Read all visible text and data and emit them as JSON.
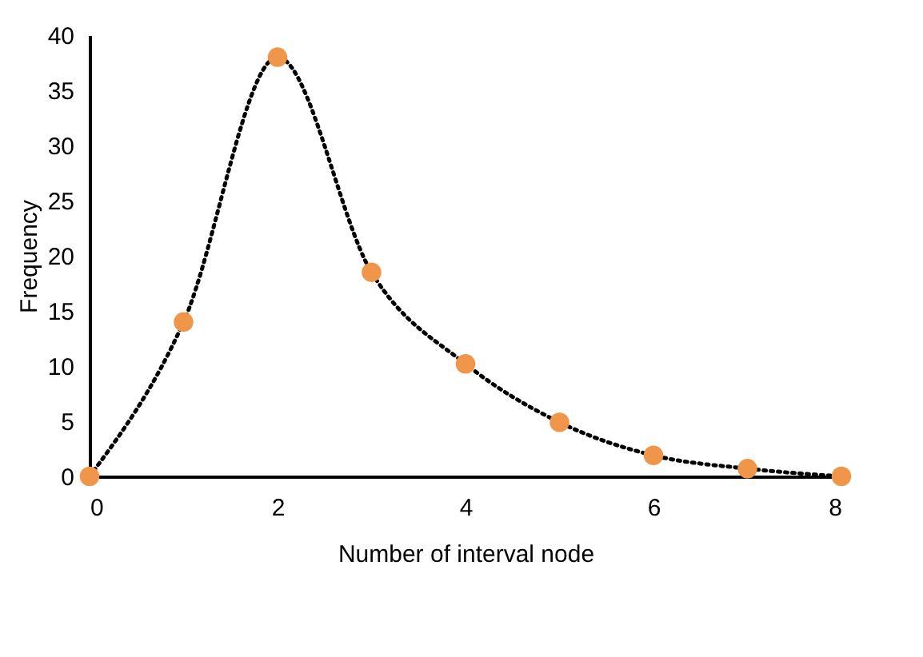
{
  "chart_data": {
    "type": "line",
    "xlabel": "Number of interval node",
    "ylabel": "Frequency",
    "x": [
      0,
      1,
      2,
      3,
      4,
      5,
      6,
      7,
      8
    ],
    "series": [
      {
        "color": "#000000",
        "marker": "none",
        "line_style": "dotted",
        "values": [
          0,
          14,
          38,
          18.5,
          10.2,
          4.9,
          1.9,
          0.7,
          0
        ]
      },
      {
        "type": "scatter",
        "color": "#f0964b",
        "marker": "circle",
        "values": [
          0,
          14,
          38,
          18.5,
          10.2,
          4.9,
          1.9,
          0.7,
          0
        ]
      }
    ],
    "xlim": [
      0,
      8
    ],
    "xticks": [
      0,
      2,
      4,
      6,
      8
    ],
    "ylim": [
      0,
      40
    ],
    "yticks": [
      0,
      5,
      10,
      15,
      20,
      25,
      30,
      35,
      40
    ],
    "grid": false
  }
}
